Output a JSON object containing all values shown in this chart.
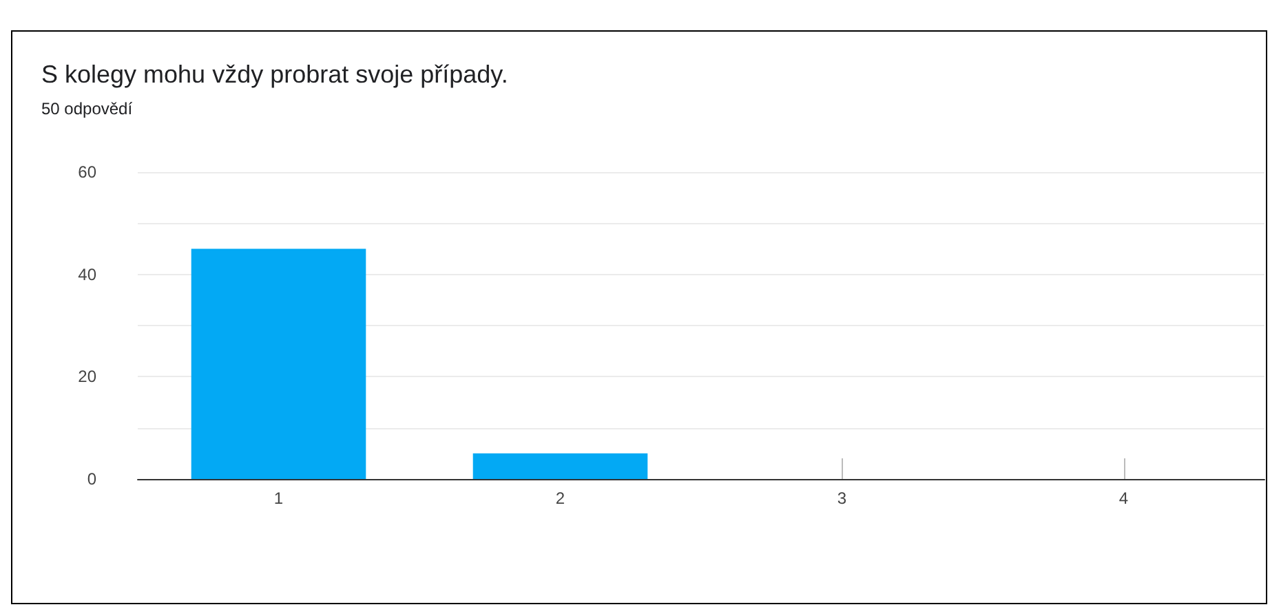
{
  "chart_data": {
    "type": "bar",
    "title": "S kolegy mohu vždy probrat svoje případy.",
    "subtitle": "50 odpovědí",
    "categories": [
      "1",
      "2",
      "3",
      "4"
    ],
    "values": [
      45,
      5,
      0,
      0
    ],
    "color": "#03a9f4",
    "ylim": [
      0,
      60
    ],
    "yticks": [
      0,
      {
        "value": 10,
        "label": null
      },
      20,
      {
        "value": 30,
        "label": null
      },
      40,
      {
        "value": 50,
        "label": null
      },
      60
    ],
    "grid": "y"
  }
}
